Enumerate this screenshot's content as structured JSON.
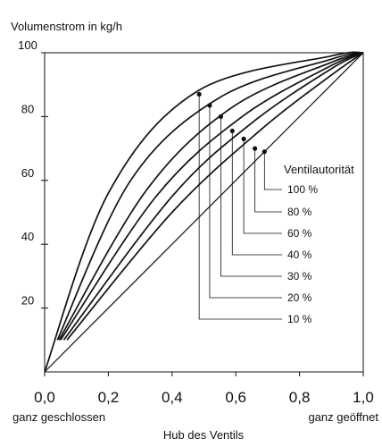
{
  "chart_data": {
    "type": "line",
    "ylabel": "Volumenstrom in kg/h",
    "xlabel": "Hub des Ventils",
    "x_min_note": "ganz geschlossen",
    "x_max_note": "ganz geöffnet",
    "xlim": [
      0,
      1
    ],
    "ylim": [
      0,
      100
    ],
    "x_ticks": [
      "0,0",
      "0,2",
      "0,4",
      "0,6",
      "0,8",
      "1,0"
    ],
    "y_ticks": [
      "20",
      "40",
      "60",
      "80",
      "100"
    ],
    "grid": false,
    "legend_title": "Ventilautorität",
    "series": [
      {
        "name": "100 %",
        "points": [
          [
            0,
            0
          ],
          [
            1,
            100
          ]
        ]
      },
      {
        "name": "80 %",
        "points": [
          [
            0.07,
            10
          ],
          [
            0.4,
            50
          ],
          [
            0.68,
            76
          ],
          [
            0.9,
            93
          ],
          [
            1,
            100
          ]
        ]
      },
      {
        "name": "60 %",
        "points": [
          [
            0.06,
            10
          ],
          [
            0.4,
            55
          ],
          [
            0.65,
            78
          ],
          [
            0.9,
            95
          ],
          [
            1,
            100
          ]
        ]
      },
      {
        "name": "40 %",
        "points": [
          [
            0.05,
            10
          ],
          [
            0.35,
            55
          ],
          [
            0.62,
            80
          ],
          [
            0.9,
            96
          ],
          [
            1,
            100
          ]
        ]
      },
      {
        "name": "30 %",
        "points": [
          [
            0.045,
            10
          ],
          [
            0.32,
            57
          ],
          [
            0.59,
            83
          ],
          [
            0.9,
            97
          ],
          [
            1,
            100
          ]
        ]
      },
      {
        "name": "20 %",
        "points": [
          [
            0.04,
            10
          ],
          [
            0.27,
            60
          ],
          [
            0.55,
            86
          ],
          [
            0.9,
            98
          ],
          [
            1,
            100
          ]
        ]
      },
      {
        "name": "10 %",
        "points": [
          [
            0,
            0
          ],
          [
            0.2,
            56
          ],
          [
            0.48,
            88
          ],
          [
            0.9,
            99
          ],
          [
            1,
            100
          ]
        ]
      }
    ],
    "markers": [
      {
        "series": "10 %",
        "x": 0.485,
        "y": 87
      },
      {
        "series": "20 %",
        "x": 0.518,
        "y": 83.5
      },
      {
        "series": "30 %",
        "x": 0.553,
        "y": 80
      },
      {
        "series": "40 %",
        "x": 0.589,
        "y": 75.5
      },
      {
        "series": "60 %",
        "x": 0.625,
        "y": 73
      },
      {
        "series": "80 %",
        "x": 0.66,
        "y": 70
      },
      {
        "series": "100 %",
        "x": 0.69,
        "y": 69
      }
    ]
  }
}
